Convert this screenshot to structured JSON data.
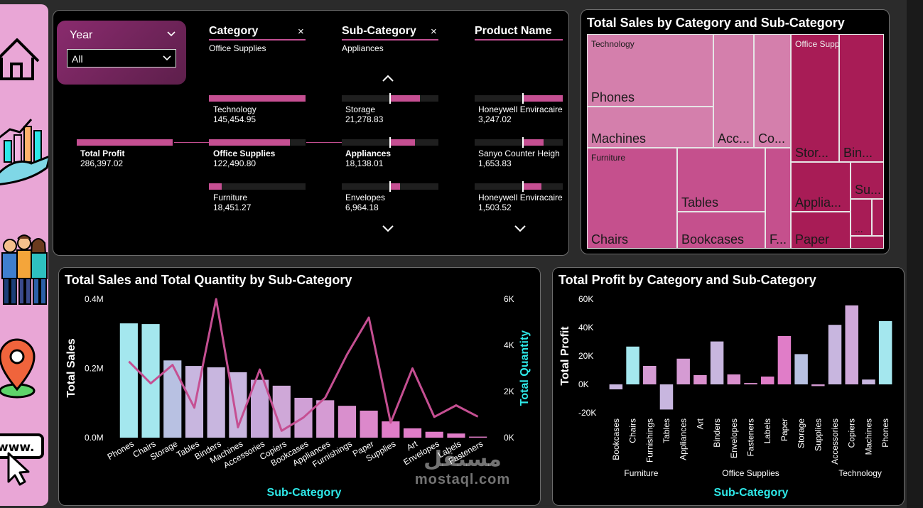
{
  "colors": {
    "accent": "#c54f92",
    "teal": "#2ee8e8",
    "panel_bg": "#000000",
    "sidebar_bg": "#e9a6d6"
  },
  "sidebar": {
    "items": [
      {
        "icon": "home-icon"
      },
      {
        "icon": "growth-chart-icon"
      },
      {
        "icon": "customers-icon"
      },
      {
        "icon": "location-pin-icon"
      },
      {
        "icon": "web-cursor-icon"
      }
    ]
  },
  "filters": {
    "year": {
      "label": "Year",
      "value": "All"
    },
    "columns": [
      {
        "header": "Category",
        "selected": "Office Supplies",
        "clear": "×"
      },
      {
        "header": "Sub-Category",
        "selected": "Appliances",
        "clear": "×"
      },
      {
        "header": "Product Name"
      }
    ],
    "root": {
      "label": "Total Profit",
      "value": "286,397.02"
    },
    "category_nodes": [
      {
        "label": "Technology",
        "value": "145,454.95",
        "fill": 1.0
      },
      {
        "label": "Office Supplies",
        "value": "122,490.80",
        "fill": 0.84
      },
      {
        "label": "Furniture",
        "value": "18,451.27",
        "fill": 0.13
      }
    ],
    "subcategory_nodes": [
      {
        "label": "Storage",
        "value": "21,278.83",
        "fill": 0.31
      },
      {
        "label": "Appliances",
        "value": "18,138.01",
        "fill": 0.26
      },
      {
        "label": "Envelopes",
        "value": "6,964.18",
        "fill": 0.1
      }
    ],
    "product_nodes": [
      {
        "label": "Honeywell Enviracaire",
        "value": "3,247.02",
        "fill": 1.0
      },
      {
        "label": "Sanyo Counter Heigh",
        "value": "1,653.83",
        "fill": 0.51
      },
      {
        "label": "Honeywell Enviracaire",
        "value": "1,503.52",
        "fill": 0.46
      }
    ]
  },
  "treemap": {
    "title": "Total Sales by Category and Sub-Category",
    "groups": [
      "Technology",
      "Office Supplies",
      "Furniture"
    ],
    "cells": [
      "Phones",
      "Machines",
      "Acc...",
      "Co...",
      "Stor...",
      "Bin...",
      "Tables",
      "Chairs",
      "Bookcases",
      "F...",
      "Applia...",
      "Su...",
      "...",
      "Paper"
    ]
  },
  "combo": {
    "title": "Total Sales and Total Quantity by Sub-Category",
    "chart_data": {
      "type": "bar",
      "categories": [
        "Phones",
        "Chairs",
        "Storage",
        "Tables",
        "Binders",
        "Machines",
        "Accessories",
        "Copiers",
        "Bookcases",
        "Appliances",
        "Furnishings",
        "Paper",
        "Supplies",
        "Art",
        "Envelopes",
        "Labels",
        "Fasteners"
      ],
      "xlabel": "Sub-Category",
      "ylabel": "Total Sales",
      "y2label": "Total Quantity",
      "ylim": [
        0,
        400000
      ],
      "y2lim": [
        0,
        6000
      ],
      "yticks": [
        "0.0M",
        "0.2M",
        "0.4M"
      ],
      "y2ticks": [
        "0K",
        "2K",
        "4K",
        "6K"
      ],
      "series": [
        {
          "name": "Total Sales",
          "values": [
            330000,
            328000,
            223000,
            207000,
            203000,
            189000,
            167000,
            150000,
            115000,
            108000,
            92000,
            78000,
            47000,
            27000,
            17000,
            12000,
            3000
          ]
        },
        {
          "name": "Total Quantity",
          "values": [
            3300,
            2350,
            3150,
            1300,
            6000,
            450,
            2950,
            300,
            870,
            1730,
            3600,
            5200,
            650,
            3000,
            900,
            1400,
            910
          ]
        }
      ],
      "colors": [
        "#a4e7ee",
        "#a4e7ee",
        "#b8c1e2",
        "#c8b6df",
        "#c8b6df",
        "#c8b6df",
        "#c6a8da",
        "#cfa8d8",
        "#d0a0d6",
        "#d59bd3",
        "#d98fcd",
        "#dc88cb",
        "#e07dc8",
        "#e07dc8",
        "#e07dc8",
        "#e07dc8",
        "#e07dc8"
      ],
      "line_color": "#c54f92"
    }
  },
  "profit": {
    "title": "Total Profit by Category and Sub-Category",
    "chart_data": {
      "type": "bar",
      "groups": [
        {
          "name": "Furniture",
          "categories": [
            "Bookcases",
            "Chairs",
            "Furnishings",
            "Tables"
          ]
        },
        {
          "name": "Office Supplies",
          "categories": [
            "Appliances",
            "Art",
            "Binders",
            "Envelopes",
            "Fasteners",
            "Labels",
            "Paper",
            "Storage",
            "Supplies"
          ]
        },
        {
          "name": "Technology",
          "categories": [
            "Accessories",
            "Copiers",
            "Machines",
            "Phones"
          ]
        }
      ],
      "values": [
        -3500,
        26600,
        13000,
        -17700,
        18100,
        6500,
        30200,
        7000,
        950,
        5500,
        34000,
        21300,
        -1200,
        41900,
        55600,
        3400,
        44500
      ],
      "colors": [
        "#c8b6df",
        "#a4e7ee",
        "#d59bd3",
        "#c8b6df",
        "#d59bd3",
        "#d98fcd",
        "#c8b6df",
        "#d98fcd",
        "#d98fcd",
        "#e07dc8",
        "#e07dc8",
        "#b8c1e2",
        "#d59bd3",
        "#c8b6df",
        "#d0a8da",
        "#c8b6df",
        "#a4e7ee"
      ],
      "xlabel": "Sub-Category",
      "ylabel": "Total Profit",
      "ylim": [
        -20000,
        60000
      ],
      "yticks": [
        "60K",
        "40K",
        "20K",
        "0K",
        "-20K"
      ]
    }
  },
  "watermark": {
    "arabic": "مستقل",
    "latin": "mostaql.com"
  }
}
